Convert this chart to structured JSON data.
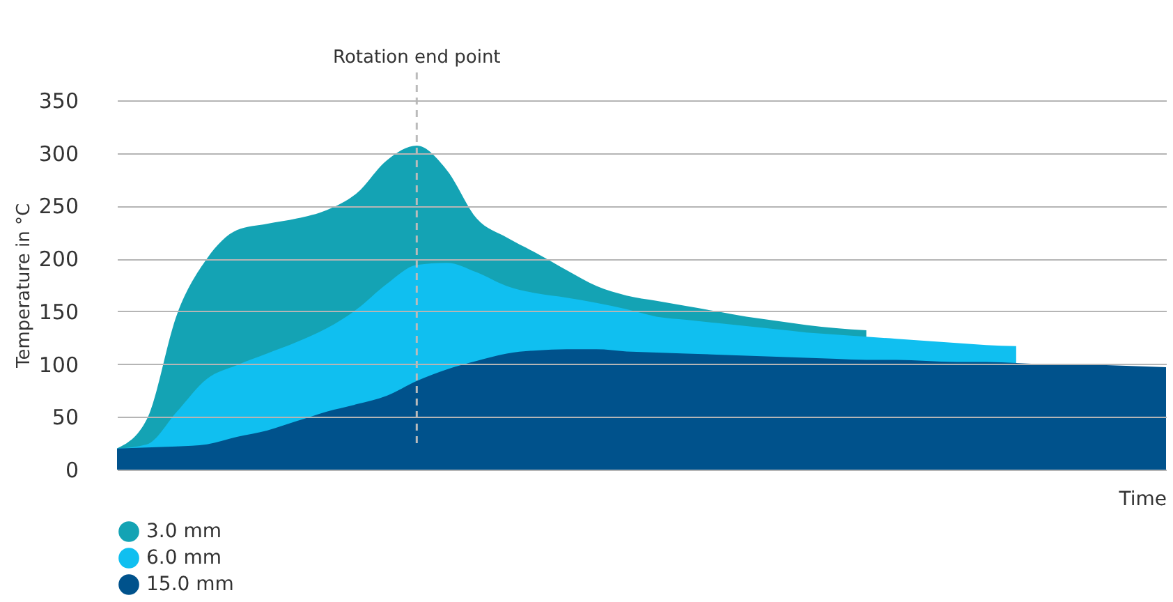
{
  "chart_data": {
    "type": "area",
    "xlabel": "Time",
    "ylabel": "Temperature in °C",
    "categories": [
      null,
      null,
      null,
      null,
      null,
      null,
      null,
      null,
      null,
      null,
      null,
      null,
      null,
      null,
      null,
      null,
      null,
      null,
      null,
      null,
      null,
      null,
      null,
      null,
      null,
      null,
      null,
      null,
      null,
      null,
      null,
      null,
      null,
      null,
      null,
      null
    ],
    "series": [
      {
        "name": "3.0 mm",
        "color": "#14a3b4",
        "values": [
          20,
          48,
          147,
          200,
          227,
          233,
          238,
          246,
          262,
          293,
          307,
          284,
          238,
          220,
          205,
          189,
          174,
          165,
          160,
          155,
          150,
          145,
          141,
          137,
          134,
          132,
          null,
          null,
          null,
          null,
          null,
          null,
          null,
          null,
          null,
          null
        ]
      },
      {
        "name": "6.0 mm",
        "color": "#10bff0",
        "values": [
          20,
          24,
          55,
          86,
          99,
          110,
          121,
          134,
          152,
          176,
          194,
          196,
          187,
          174,
          167,
          163,
          158,
          152,
          145,
          142,
          139,
          136,
          133,
          130,
          128,
          126,
          124,
          122,
          120,
          118,
          117,
          null,
          null,
          null,
          null,
          null
        ]
      },
      {
        "name": "15.0 mm",
        "color": "#00528c",
        "values": [
          20,
          21,
          22,
          24,
          31,
          37,
          46,
          55,
          62,
          70,
          84,
          95,
          103,
          110,
          113,
          114,
          114,
          112,
          111,
          110,
          109,
          108,
          107,
          106,
          105,
          104,
          104,
          103,
          102,
          102,
          101,
          100,
          100,
          99,
          98,
          97
        ]
      }
    ],
    "ylim": [
      0,
      350
    ],
    "yticks": [
      0,
      50,
      100,
      150,
      200,
      250,
      300,
      350
    ],
    "grid": "y",
    "tick_labels": "y",
    "legend": "bottom left",
    "annotations": [
      "Rotation end point"
    ]
  }
}
